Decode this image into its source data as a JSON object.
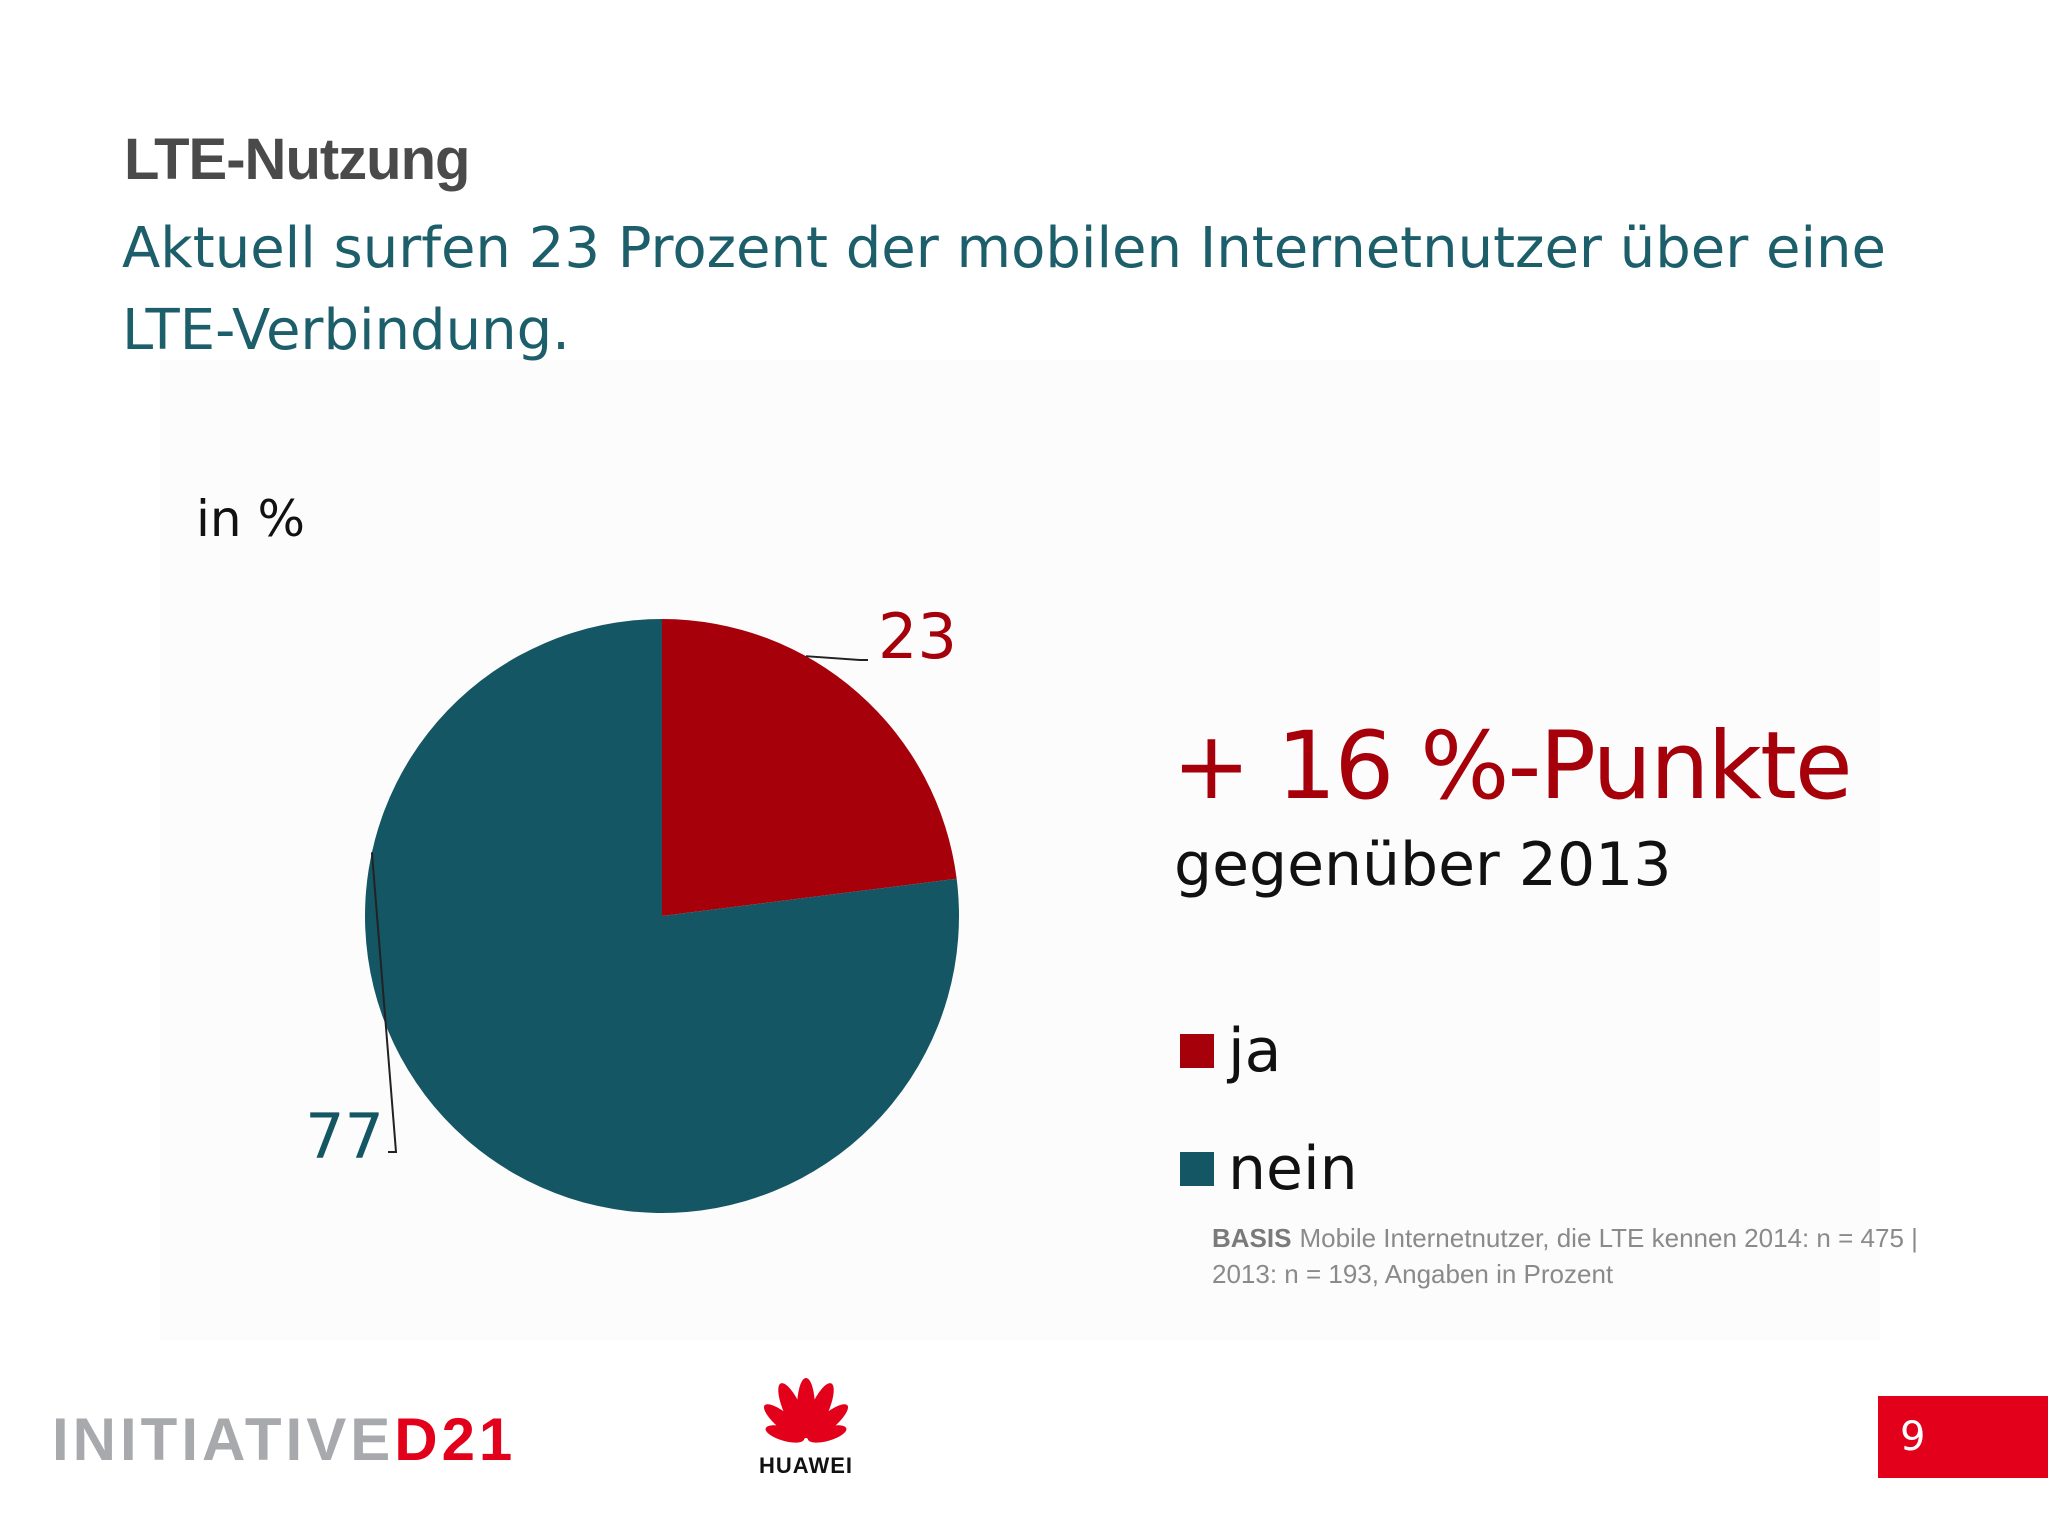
{
  "slide": {
    "kicker": "LTE-Nutzung",
    "headline": "Aktuell surfen 23 Prozent der mobilen Internetnutzer über eine LTE-Verbindung.",
    "unit_label": "in %",
    "delta": "+ 16 %-Punkte",
    "delta_sub": "gegenüber 2013",
    "basis_key": "BASIS",
    "basis_text": "Mobile Internetnutzer, die LTE kennen 2014: n = 475 | 2013: n = 193, Angaben in Prozent",
    "page_number": "9"
  },
  "footer": {
    "logo_initiative": "INITIATIVE",
    "logo_d21": "D21",
    "logo_huawei": "HUAWEI"
  },
  "colors": {
    "ja": "#a6000b",
    "nein": "#155664",
    "headline": "#1d5e6b",
    "accent": "#e2001a"
  },
  "chart_data": {
    "type": "pie",
    "categories": [
      "ja",
      "nein"
    ],
    "values": [
      23,
      77
    ],
    "data_labels": [
      "23",
      "77"
    ],
    "colors": [
      "#a6000b",
      "#155664"
    ],
    "unit": "in %",
    "start_angle": "12 o'clock",
    "direction": "clockwise",
    "legend_position": "right"
  }
}
